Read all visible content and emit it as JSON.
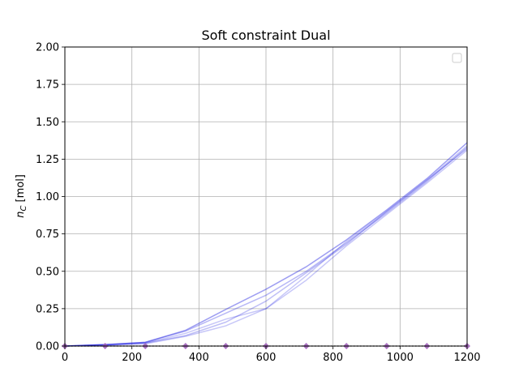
{
  "chart_data": {
    "type": "line",
    "title": "Soft constraint Dual",
    "xlabel": "",
    "ylabel_symbol": "n",
    "ylabel_subscript": "C",
    "ylabel_unit": "[mol]",
    "xlim": [
      0,
      1200
    ],
    "ylim": [
      0,
      2.0
    ],
    "xticks": [
      0,
      200,
      400,
      600,
      800,
      1000,
      1200
    ],
    "xtick_labels": [
      "0",
      "200",
      "400",
      "600",
      "800",
      "1000",
      "1200"
    ],
    "yticks": [
      0,
      0.25,
      0.5,
      0.75,
      1.0,
      1.25,
      1.5,
      1.75,
      2.0
    ],
    "ytick_labels": [
      "0.00",
      "0.25",
      "0.50",
      "0.75",
      "1.00",
      "1.25",
      "1.50",
      "1.75",
      "2.00"
    ],
    "grid": true,
    "legend": "top-right, empty",
    "line_color": "#0000dd",
    "marker_color": "#9b59b6",
    "series": [
      {
        "opacity": 0.38,
        "x": [
          0,
          120,
          240,
          360,
          480,
          600,
          720,
          840,
          960,
          1080,
          1200
        ],
        "y": [
          0,
          0.01,
          0.025,
          0.105,
          0.245,
          0.38,
          0.53,
          0.71,
          0.91,
          1.12,
          1.36
        ]
      },
      {
        "opacity": 0.28,
        "x": [
          0,
          120,
          240,
          360,
          480,
          600,
          720,
          840,
          960,
          1080,
          1200
        ],
        "y": [
          0,
          0.01,
          0.025,
          0.1,
          0.22,
          0.34,
          0.5,
          0.69,
          0.89,
          1.1,
          1.33
        ]
      },
      {
        "opacity": 0.22,
        "x": [
          0,
          120,
          240,
          360,
          480,
          600,
          720,
          840,
          960,
          1080,
          1200
        ],
        "y": [
          0,
          0.005,
          0.02,
          0.085,
          0.18,
          0.25,
          0.44,
          0.67,
          0.88,
          1.09,
          1.31
        ]
      },
      {
        "opacity": 0.22,
        "x": [
          0,
          120,
          240,
          360,
          480,
          600,
          720,
          840,
          960,
          1080,
          1200
        ],
        "y": [
          0,
          0.005,
          0.015,
          0.065,
          0.135,
          0.25,
          0.47,
          0.7,
          0.9,
          1.11,
          1.34
        ]
      },
      {
        "opacity": 0.25,
        "x": [
          0,
          120,
          240,
          360,
          480,
          600,
          720,
          840,
          960,
          1080,
          1200
        ],
        "y": [
          0,
          0.01,
          0.02,
          0.07,
          0.16,
          0.3,
          0.49,
          0.68,
          0.9,
          1.11,
          1.32
        ]
      }
    ],
    "markers": {
      "shape": "diamond",
      "x": [
        0,
        120,
        240,
        360,
        480,
        600,
        720,
        840,
        960,
        1080,
        1200
      ],
      "y": 0
    },
    "baseline": {
      "style": "dotted",
      "color": "#000000",
      "y": 0
    }
  }
}
